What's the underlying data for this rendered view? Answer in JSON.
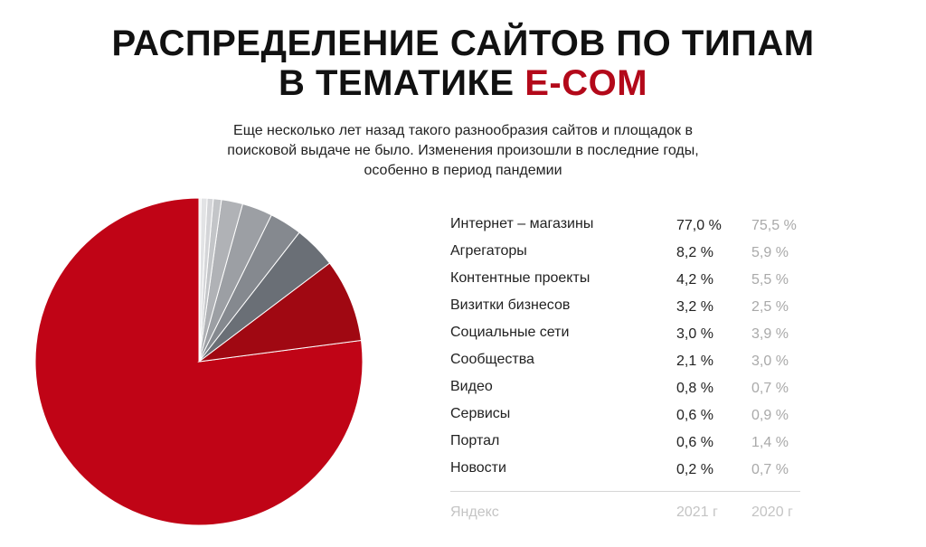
{
  "header": {
    "title_line1": "РАСПРЕДЕЛЕНИЕ САЙТОВ ПО ТИПАМ",
    "title_line2_prefix": "В ТЕМАТИКЕ ",
    "title_line2_accent": "E-COM",
    "subtitle_line1": "Еще несколько лет назад такого разнообразия сайтов и площадок в",
    "subtitle_line2": "поисковой выдаче не было. Изменения произошли в последние годы,",
    "subtitle_line3": "особенно в период пандемии"
  },
  "colors": {
    "accent": "#b3091a",
    "pie": [
      "#c00416",
      "#a00812",
      "#6a6f76",
      "#85898f",
      "#9c9fa4",
      "#b0b2b6",
      "#c3c5c8",
      "#d4d5d8",
      "#e2e3e5",
      "#efeff0"
    ]
  },
  "chart_data": {
    "type": "pie",
    "series_name": "2021 г",
    "categories": [
      "Интернет – магазины",
      "Агрегаторы",
      "Контентные проекты",
      "Визитки бизнесов",
      "Социальные сети",
      "Сообщества",
      "Видео",
      "Сервисы",
      "Портал",
      "Новости"
    ],
    "values": [
      77.0,
      8.2,
      4.2,
      3.2,
      3.0,
      2.1,
      0.8,
      0.6,
      0.6,
      0.2
    ],
    "values_2020": [
      75.5,
      5.9,
      5.5,
      2.5,
      3.9,
      3.0,
      0.7,
      0.9,
      1.4,
      0.7
    ]
  },
  "table": {
    "rows": [
      {
        "name": "Интернет – магазины",
        "v2021": "77,0 %",
        "v2020": "75,5 %"
      },
      {
        "name": "Агрегаторы",
        "v2021": "8,2 %",
        "v2020": "5,9 %"
      },
      {
        "name": "Контентные проекты",
        "v2021": "4,2 %",
        "v2020": "5,5 %"
      },
      {
        "name": "Визитки бизнесов",
        "v2021": "3,2 %",
        "v2020": "2,5 %"
      },
      {
        "name": "Социальные сети",
        "v2021": "3,0 %",
        "v2020": "3,9 %"
      },
      {
        "name": "Сообщества",
        "v2021": "2,1 %",
        "v2020": "3,0 %"
      },
      {
        "name": "Видео",
        "v2021": "0,8 %",
        "v2020": "0,7 %"
      },
      {
        "name": "Сервисы",
        "v2021": "0,6 %",
        "v2020": "0,9 %"
      },
      {
        "name": "Портал",
        "v2021": "0,6 %",
        "v2020": "1,4 %"
      },
      {
        "name": "Новости",
        "v2021": "0,2 %",
        "v2020": "0,7 %"
      }
    ],
    "footer": {
      "source": "Яндекс",
      "year_2021": "2021 г",
      "year_2020": "2020 г"
    }
  }
}
